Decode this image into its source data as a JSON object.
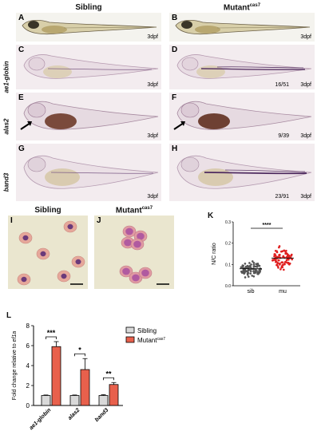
{
  "top_headers": {
    "sibling": "Sibling",
    "mutant": "Mutant",
    "mutant_sup": "cas7"
  },
  "row_labels": [
    "ae1-globin",
    "alas2",
    "band3"
  ],
  "panels": [
    {
      "letter": "A",
      "stage": "3dpf",
      "count": ""
    },
    {
      "letter": "B",
      "stage": "3dpf",
      "count": ""
    },
    {
      "letter": "C",
      "stage": "3dpf",
      "count": ""
    },
    {
      "letter": "D",
      "stage": "3dpf",
      "count": "16/51"
    },
    {
      "letter": "E",
      "stage": "3dpf",
      "count": ""
    },
    {
      "letter": "F",
      "stage": "3dpf",
      "count": "9/39"
    },
    {
      "letter": "G",
      "stage": "3dpf",
      "count": ""
    },
    {
      "letter": "H",
      "stage": "3dpf",
      "count": "23/91"
    }
  ],
  "cell_panels": {
    "I": {
      "letter": "I",
      "title": "Sibling"
    },
    "J": {
      "letter": "J",
      "title": "Mutant",
      "title_sup": "cas7"
    }
  },
  "chart_data": [
    {
      "id": "K",
      "type": "scatter",
      "ylabel": "N/C ratio",
      "categories": [
        "sib",
        "mu"
      ],
      "yticks": [
        "0.0",
        "0.1",
        "0.2",
        "0.3"
      ],
      "ylim": [
        0,
        0.3
      ],
      "significance": "****",
      "series": [
        {
          "category": "sib",
          "color": "#555555",
          "center": 0.08,
          "spread": 0.025,
          "n": 90
        },
        {
          "category": "mu",
          "color": "#e02020",
          "center": 0.13,
          "spread": 0.035,
          "n": 90
        }
      ]
    },
    {
      "id": "L",
      "type": "bar",
      "ylabel": "Fold change relative to ",
      "ylabel_italic": "ef1a",
      "categories": [
        "ae1-globin",
        "alas2",
        "band3"
      ],
      "ylim": [
        0,
        8
      ],
      "yticks": [
        "0",
        "2",
        "4",
        "6",
        "8"
      ],
      "legend": [
        "Sibling",
        "Mutant"
      ],
      "legend_sup": "cas7",
      "series": [
        {
          "name": "Sibling",
          "color": "#d9d9d9",
          "values": [
            1.0,
            1.0,
            1.0
          ],
          "errors": [
            0.05,
            0.05,
            0.08
          ]
        },
        {
          "name": "Mutant",
          "color": "#e8604c",
          "values": [
            5.9,
            3.6,
            2.1
          ],
          "errors": [
            0.5,
            1.1,
            0.2
          ]
        }
      ],
      "significance": [
        "***",
        "*",
        "**"
      ]
    }
  ],
  "colors": {
    "bar_sibling": "#d9d9d9",
    "bar_mutant": "#e8604c",
    "dot_sib": "#555555",
    "dot_mu": "#e02020"
  }
}
